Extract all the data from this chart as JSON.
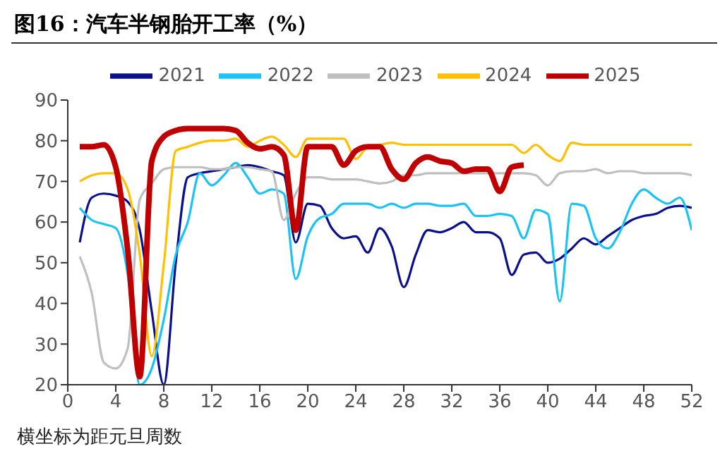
{
  "chart_data": {
    "type": "line",
    "title": "图16：汽车半钢胎开工率（%）",
    "annotations": [
      "横坐标为距元旦周数"
    ],
    "x": [
      1,
      2,
      3,
      4,
      5,
      6,
      7,
      8,
      9,
      10,
      11,
      12,
      13,
      14,
      15,
      16,
      17,
      18,
      19,
      20,
      21,
      22,
      23,
      24,
      25,
      26,
      27,
      28,
      29,
      30,
      31,
      32,
      33,
      34,
      35,
      36,
      37,
      38,
      39,
      40,
      41,
      42,
      43,
      44,
      45,
      46,
      47,
      48,
      49,
      50,
      51,
      52
    ],
    "series": [
      {
        "name": "2021",
        "color": "#0a0f8c",
        "values": [
          55,
          66,
          67,
          66.5,
          65,
          58,
          38,
          20,
          50,
          71,
          72,
          72.5,
          73,
          73.5,
          74,
          73.5,
          72.5,
          71.5,
          55,
          64.5,
          64,
          58.5,
          56,
          56.5,
          52.5,
          58.5,
          54,
          44,
          52,
          58,
          57.5,
          58.5,
          60,
          57.5,
          57.5,
          56,
          47,
          52,
          52.5,
          50,
          51,
          53.5,
          56,
          54.5,
          56.5,
          58.5,
          60.5,
          61.5,
          62,
          63.5,
          64,
          63.5
        ]
      },
      {
        "name": "2022",
        "color": "#19c3f5",
        "values": [
          63.5,
          60.5,
          59.5,
          58.5,
          47,
          20,
          24,
          36,
          52,
          60,
          72,
          69,
          71.5,
          74.5,
          71,
          67,
          68,
          67,
          46,
          56.5,
          61,
          62,
          64.5,
          64.5,
          64.5,
          63.5,
          64.5,
          63.5,
          64.5,
          64.5,
          64,
          64,
          64.5,
          61.5,
          61.5,
          62,
          61.5,
          56,
          63,
          62,
          40.5,
          64.5,
          64,
          56,
          53.5,
          57.5,
          64.5,
          68,
          66,
          64.5,
          66,
          58
        ]
      },
      {
        "name": "2023",
        "color": "#bfbfbf",
        "values": [
          51.5,
          42.5,
          25.5,
          24,
          29,
          65.5,
          69.5,
          73,
          73.5,
          73.5,
          73.5,
          73,
          73,
          73.5,
          73.5,
          73,
          72.5,
          60.5,
          67,
          71,
          71,
          70.5,
          70.5,
          70.5,
          70,
          69.5,
          70,
          71.5,
          71.5,
          72,
          72,
          72,
          72,
          72,
          72,
          72,
          72,
          72,
          71.5,
          69,
          72,
          72.5,
          72.5,
          73,
          72,
          72.5,
          72.5,
          72,
          72,
          72,
          72,
          71.5
        ]
      },
      {
        "name": "2024",
        "color": "#ffc000",
        "values": [
          70,
          71.5,
          72,
          72,
          68,
          52,
          27,
          49.5,
          77.5,
          78.5,
          79.5,
          80,
          80,
          80.5,
          78.5,
          80,
          81,
          79,
          76,
          80.5,
          80.5,
          80.5,
          80.5,
          75.5,
          78.5,
          79,
          79.5,
          79,
          79,
          79,
          79,
          79,
          79,
          79,
          79,
          79,
          79,
          77,
          79,
          76.5,
          75,
          79.5,
          79,
          79,
          79,
          79,
          79,
          79,
          79,
          79,
          79,
          79
        ]
      },
      {
        "name": "2025",
        "color": "#c00000",
        "x": [
          1,
          2,
          3,
          4,
          5,
          6,
          7,
          8,
          9,
          10,
          11,
          12,
          13,
          14,
          15,
          16,
          17,
          18,
          19,
          20,
          21,
          22,
          23,
          24,
          25,
          26,
          27,
          28,
          29,
          30,
          31,
          32,
          33,
          34,
          35,
          36,
          37,
          38
        ],
        "values": [
          78.5,
          78.5,
          79,
          73.5,
          53,
          22,
          75,
          81,
          82.5,
          83,
          83,
          83,
          83,
          82.5,
          79.5,
          78,
          78.5,
          76.5,
          58,
          78.5,
          78.5,
          78.5,
          74,
          77.5,
          78.5,
          78.5,
          73,
          70.5,
          74.5,
          76,
          75,
          74.5,
          72.5,
          73,
          73,
          67.5,
          73.5,
          74
        ]
      }
    ],
    "xlim": [
      0,
      52
    ],
    "xticks": [
      0,
      4,
      8,
      12,
      16,
      20,
      24,
      28,
      32,
      36,
      40,
      44,
      48,
      52
    ],
    "ylim": [
      20,
      90
    ],
    "yticks": [
      20,
      30,
      40,
      50,
      60,
      70,
      80,
      90
    ],
    "grid": false,
    "legend": "top",
    "marker": "none",
    "line_style": "solid"
  }
}
